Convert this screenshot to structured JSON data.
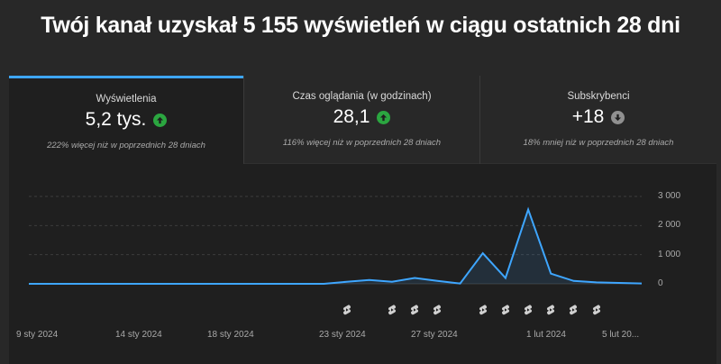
{
  "headline": "Twój kanał uzyskał 5 155 wyświetleń w ciągu ostatnich 28 dni",
  "cards": [
    {
      "label": "Wyświetlenia",
      "value": "5,2 tys.",
      "trend": "up",
      "note": "222% więcej niż w poprzednich 28 dniach",
      "active": true
    },
    {
      "label": "Czas oglądania (w godzinach)",
      "value": "28,1",
      "trend": "up",
      "note": "116% więcej niż w poprzednich 28 dniach",
      "active": false
    },
    {
      "label": "Subskrybenci",
      "value": "+18",
      "trend": "down",
      "note": "18% mniej niż w poprzednich 28 dniach",
      "active": false
    }
  ],
  "colors": {
    "accent": "#3ea6ff",
    "up": "#2ba640",
    "down": "#909090",
    "line": "#3ea6ff"
  },
  "chart_data": {
    "type": "area",
    "x": [
      "2024-01-09",
      "2024-01-10",
      "2024-01-11",
      "2024-01-12",
      "2024-01-13",
      "2024-01-14",
      "2024-01-15",
      "2024-01-16",
      "2024-01-17",
      "2024-01-18",
      "2024-01-19",
      "2024-01-20",
      "2024-01-21",
      "2024-01-22",
      "2024-01-23",
      "2024-01-24",
      "2024-01-25",
      "2024-01-26",
      "2024-01-27",
      "2024-01-28",
      "2024-01-29",
      "2024-01-30",
      "2024-01-31",
      "2024-02-01",
      "2024-02-02",
      "2024-02-03",
      "2024-02-04",
      "2024-02-05"
    ],
    "values": [
      0,
      0,
      0,
      0,
      0,
      0,
      0,
      0,
      0,
      0,
      0,
      0,
      0,
      0,
      70,
      130,
      70,
      200,
      100,
      10,
      1050,
      200,
      2550,
      350,
      100,
      50,
      30,
      10
    ],
    "x_tick_labels": [
      "9 sty 2024",
      "14 sty 2024",
      "18 sty 2024",
      "23 sty 2024",
      "27 sty 2024",
      "1 lut 2024",
      "5 lut 20..."
    ],
    "y_tick_labels": [
      "3 000",
      "2 000",
      "1 000",
      "0"
    ],
    "y_ticks": [
      3000,
      2000,
      1000,
      0
    ],
    "ylim": [
      0,
      3000
    ],
    "grid": true,
    "shorts_markers": [
      "2024-01-23",
      "2024-01-25",
      "2024-01-26",
      "2024-01-27",
      "2024-01-29",
      "2024-01-30",
      "2024-01-31",
      "2024-02-01",
      "2024-02-02",
      "2024-02-03"
    ]
  }
}
